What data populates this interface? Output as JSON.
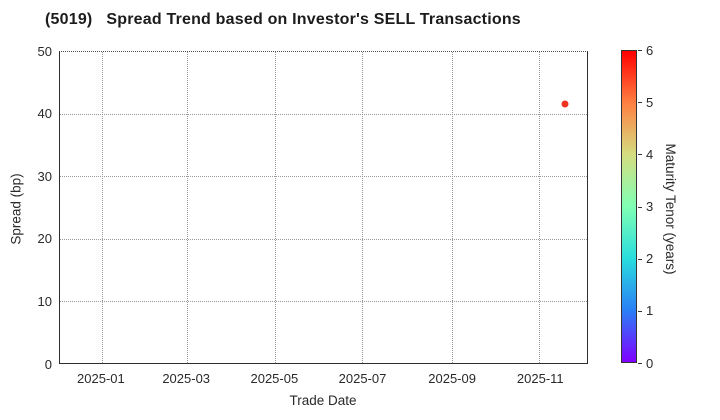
{
  "chart_data": {
    "type": "scatter",
    "title": "(5019)   Spread Trend based on Investor's SELL Transactions",
    "xlabel": "Trade Date",
    "ylabel": "Spread (bp)",
    "xlim": [
      "2024-12-03",
      "2025-12-04"
    ],
    "ylim": [
      0,
      50
    ],
    "x_tick_labels": [
      "2025-01",
      "2025-03",
      "2025-05",
      "2025-07",
      "2025-09",
      "2025-11"
    ],
    "x_tick_dates": [
      "2025-01-01",
      "2025-03-01",
      "2025-05-01",
      "2025-07-01",
      "2025-09-01",
      "2025-11-01"
    ],
    "y_ticks": [
      0,
      10,
      20,
      30,
      40,
      50
    ],
    "grid": true,
    "legend": "none",
    "points": [
      {
        "date": "2025-11-19",
        "spread_bp": 41.7,
        "maturity_tenor_years": 5.8,
        "color": "#f1331f"
      }
    ],
    "colorbar": {
      "label": "Maturity Tenor (years)",
      "min": 0,
      "max": 6,
      "ticks": [
        0,
        1,
        2,
        3,
        4,
        5,
        6
      ],
      "colormap": "rainbow",
      "gradient_stops_bottom_to_top": [
        "#8000ff",
        "#2a80f6",
        "#2adddd",
        "#80ffb4",
        "#d5dd80",
        "#ff8042",
        "#ff0000"
      ]
    },
    "colors": {
      "grid": "#999999",
      "spine": "#2e2e2e",
      "background": "#ffffff",
      "text": "#2a2a2a"
    }
  }
}
